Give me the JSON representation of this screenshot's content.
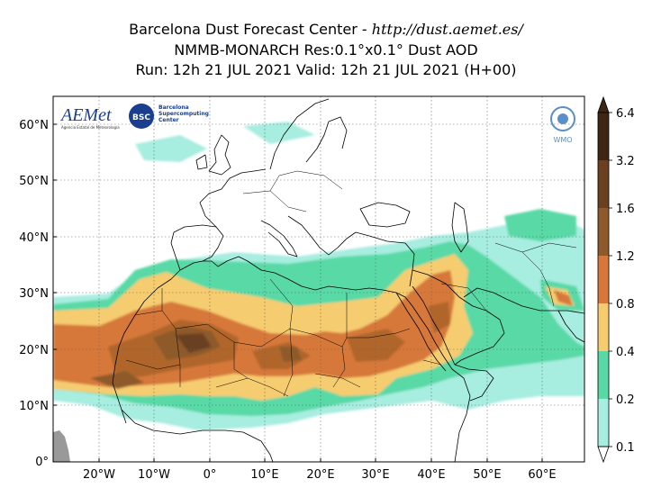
{
  "title": {
    "line1_prefix": "Barcelona Dust Forecast Center - ",
    "line1_url": "http://dust.aemet.es/",
    "line2": "NMMB-MONARCH   Res:0.1°x0.1°   Dust AOD",
    "line3": "Run: 12h 21 JUL 2021   Valid: 12h 21 JUL 2021 (H+00)"
  },
  "logos": {
    "aemet": "AEMet",
    "aemet_sub": "Agencia Estatal de Meteorología",
    "bsc": "BSC",
    "bsc_text": [
      "Barcelona",
      "Supercomputing",
      "Center"
    ],
    "wmo": "WMO"
  },
  "map_data": {
    "lon_range": [
      -28,
      68
    ],
    "lat_range": [
      0,
      65
    ],
    "lon_ticks": [
      "20°W",
      "10°W",
      "0°",
      "10°E",
      "20°E",
      "30°E",
      "40°E",
      "50°E",
      "60°E"
    ],
    "lat_ticks": [
      "60°N",
      "50°N",
      "40°N",
      "30°N",
      "20°N",
      "10°N",
      "0°"
    ],
    "colorbar": {
      "levels": [
        "6.4",
        "3.2",
        "1.6",
        "1.2",
        "0.8",
        "0.4",
        "0.2",
        "0.1"
      ],
      "colors": [
        "#3d2613",
        "#6b4020",
        "#8e5a2c",
        "#b0662c",
        "#d7783a",
        "#f6cc6f",
        "#58d9a6",
        "#a7ede0"
      ]
    }
  }
}
